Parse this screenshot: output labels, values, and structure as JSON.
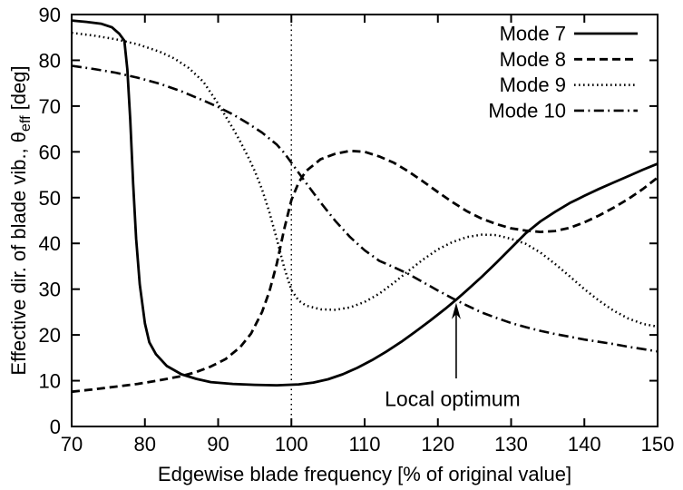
{
  "chart_data": {
    "type": "line",
    "title": "",
    "xlabel": "Edgewise blade frequency [% of original value]",
    "ylabel": {
      "prefix": "Effective dir. of blade vib., θ",
      "sub": "eff",
      "suffix": " [deg]"
    },
    "xlim": [
      70,
      150
    ],
    "ylim": [
      0,
      90
    ],
    "xticks": [
      70,
      80,
      90,
      100,
      110,
      120,
      130,
      140,
      150
    ],
    "yticks": [
      0,
      10,
      20,
      30,
      40,
      50,
      60,
      70,
      80,
      90
    ],
    "grid": false,
    "legend_position": "top-right",
    "colors": {
      "foreground": "#000000",
      "background": "#ffffff"
    },
    "reference_line": {
      "axis": "x",
      "value": 100,
      "style": "dotted"
    },
    "annotation": {
      "text": "Local optimum",
      "arrow_tip": [
        122.5,
        27
      ],
      "arrow_tail": [
        122.5,
        10.5
      ],
      "label_pos": [
        122,
        4.5
      ]
    },
    "series": [
      {
        "name": "Mode 7",
        "style": "solid",
        "points": [
          [
            70,
            88.7
          ],
          [
            72,
            88.4
          ],
          [
            74,
            88.0
          ],
          [
            75.5,
            87.2
          ],
          [
            76.5,
            85.8
          ],
          [
            77.2,
            84.3
          ],
          [
            77.6,
            78
          ],
          [
            78.0,
            67
          ],
          [
            78.4,
            53
          ],
          [
            78.8,
            41
          ],
          [
            79.3,
            31
          ],
          [
            80,
            22.5
          ],
          [
            80.6,
            18.4
          ],
          [
            81.5,
            15.8
          ],
          [
            83,
            13.2
          ],
          [
            85,
            11.4
          ],
          [
            87,
            10.4
          ],
          [
            89,
            9.7
          ],
          [
            92,
            9.3
          ],
          [
            95,
            9.1
          ],
          [
            98,
            9.0
          ],
          [
            101,
            9.2
          ],
          [
            103,
            9.6
          ],
          [
            105,
            10.3
          ],
          [
            107,
            11.4
          ],
          [
            109,
            12.8
          ],
          [
            111,
            14.5
          ],
          [
            113,
            16.4
          ],
          [
            115,
            18.5
          ],
          [
            117,
            20.8
          ],
          [
            119,
            23.2
          ],
          [
            121,
            25.7
          ],
          [
            122.5,
            27.7
          ],
          [
            124,
            29.8
          ],
          [
            126,
            32.7
          ],
          [
            128,
            35.8
          ],
          [
            130,
            39
          ],
          [
            132,
            42.2
          ],
          [
            134,
            44.8
          ],
          [
            136,
            46.9
          ],
          [
            138,
            48.8
          ],
          [
            140,
            50.4
          ],
          [
            142,
            51.9
          ],
          [
            144,
            53.3
          ],
          [
            146,
            54.7
          ],
          [
            148,
            56.1
          ],
          [
            150,
            57.4
          ]
        ]
      },
      {
        "name": "Mode 8",
        "style": "dashed",
        "points": [
          [
            70,
            7.6
          ],
          [
            73,
            8.1
          ],
          [
            76,
            8.7
          ],
          [
            79,
            9.3
          ],
          [
            82,
            10.1
          ],
          [
            85,
            11
          ],
          [
            87,
            11.9
          ],
          [
            89,
            13.1
          ],
          [
            91,
            14.7
          ],
          [
            93,
            17.3
          ],
          [
            94.5,
            20.3
          ],
          [
            96,
            25
          ],
          [
            97,
            29.5
          ],
          [
            98,
            35.5
          ],
          [
            99,
            43
          ],
          [
            100,
            49.5
          ],
          [
            101,
            53.3
          ],
          [
            102,
            55.8
          ],
          [
            104,
            58.4
          ],
          [
            106,
            59.6
          ],
          [
            108,
            60.2
          ],
          [
            110,
            60
          ],
          [
            112,
            59
          ],
          [
            114,
            57.6
          ],
          [
            116,
            55.7
          ],
          [
            118,
            53.5
          ],
          [
            120,
            51.2
          ],
          [
            122,
            49
          ],
          [
            124,
            47
          ],
          [
            126,
            45.4
          ],
          [
            128,
            44.2
          ],
          [
            130,
            43.3
          ],
          [
            132,
            42.8
          ],
          [
            134,
            42.5
          ],
          [
            136,
            42.7
          ],
          [
            138,
            43.4
          ],
          [
            140,
            44.6
          ],
          [
            142,
            46.1
          ],
          [
            144,
            47.8
          ],
          [
            146,
            49.7
          ],
          [
            148,
            51.9
          ],
          [
            150,
            54.4
          ]
        ]
      },
      {
        "name": "Mode 9",
        "style": "dotted",
        "points": [
          [
            70,
            86
          ],
          [
            73,
            85.4
          ],
          [
            76,
            84.6
          ],
          [
            79,
            83.5
          ],
          [
            82,
            81.9
          ],
          [
            84,
            80.4
          ],
          [
            86,
            78.3
          ],
          [
            88,
            75.3
          ],
          [
            90,
            70.5
          ],
          [
            91,
            67.8
          ],
          [
            92,
            65.2
          ],
          [
            93,
            62.3
          ],
          [
            94,
            59.2
          ],
          [
            95,
            55.8
          ],
          [
            96,
            51.8
          ],
          [
            97,
            46.8
          ],
          [
            98,
            41
          ],
          [
            99,
            34.8
          ],
          [
            100,
            29.8
          ],
          [
            101,
            27.5
          ],
          [
            102,
            26.4
          ],
          [
            104,
            25.6
          ],
          [
            106,
            25.5
          ],
          [
            108,
            26
          ],
          [
            110,
            27.2
          ],
          [
            112,
            29
          ],
          [
            114,
            31.4
          ],
          [
            116,
            34
          ],
          [
            118,
            36.5
          ],
          [
            120,
            38.7
          ],
          [
            122,
            40.3
          ],
          [
            124,
            41.4
          ],
          [
            126,
            41.9
          ],
          [
            128,
            41.8
          ],
          [
            130,
            41
          ],
          [
            132,
            39.9
          ],
          [
            134,
            38
          ],
          [
            136,
            35.5
          ],
          [
            138,
            32.8
          ],
          [
            140,
            30
          ],
          [
            142,
            27.5
          ],
          [
            144,
            25.3
          ],
          [
            146,
            23.6
          ],
          [
            148,
            22.4
          ],
          [
            150,
            21.8
          ]
        ]
      },
      {
        "name": "Mode 10",
        "style": "dashdot",
        "points": [
          [
            70,
            78.8
          ],
          [
            73,
            78.1
          ],
          [
            76,
            77.3
          ],
          [
            79,
            76.2
          ],
          [
            82,
            74.9
          ],
          [
            85,
            73.2
          ],
          [
            88,
            71.2
          ],
          [
            90,
            69.8
          ],
          [
            92,
            68.2
          ],
          [
            94,
            66.3
          ],
          [
            96,
            64.2
          ],
          [
            98,
            61.6
          ],
          [
            99,
            59.8
          ],
          [
            100,
            57.6
          ],
          [
            101,
            55.4
          ],
          [
            102,
            53.2
          ],
          [
            104,
            48.9
          ],
          [
            106,
            44.9
          ],
          [
            108,
            41.4
          ],
          [
            110,
            38.5
          ],
          [
            112,
            36.2
          ],
          [
            114,
            34.8
          ],
          [
            116,
            33.3
          ],
          [
            118,
            31.5
          ],
          [
            120,
            29.7
          ],
          [
            122,
            28
          ],
          [
            124,
            26.4
          ],
          [
            126,
            24.9
          ],
          [
            128,
            23.7
          ],
          [
            130,
            22.6
          ],
          [
            132,
            21.7
          ],
          [
            134,
            20.9
          ],
          [
            136,
            20.2
          ],
          [
            138,
            19.6
          ],
          [
            140,
            19
          ],
          [
            142,
            18.5
          ],
          [
            144,
            18
          ],
          [
            146,
            17.4
          ],
          [
            148,
            16.9
          ],
          [
            150,
            16.4
          ]
        ]
      }
    ]
  }
}
